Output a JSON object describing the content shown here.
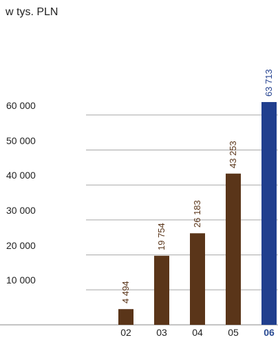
{
  "chart_data": {
    "type": "bar",
    "ylabel": "w tys. PLN",
    "categories": [
      "02",
      "03",
      "04",
      "05",
      "06"
    ],
    "values": [
      4494,
      19754,
      26183,
      43253,
      63713
    ],
    "value_labels": [
      "4 494",
      "19 754",
      "26 183",
      "43 253",
      "63 713"
    ],
    "y_ticks": [
      10000,
      20000,
      30000,
      40000,
      50000,
      60000
    ],
    "y_tick_labels": [
      "10 000",
      "20 000",
      "30 000",
      "40 000",
      "50 000",
      "60 000"
    ],
    "ylim": [
      0,
      63713
    ],
    "highlight_index": 4,
    "grid": true,
    "colors": {
      "bar": "#5a3519",
      "highlight": "#213f8e",
      "grid": "#a7a7a7"
    }
  }
}
